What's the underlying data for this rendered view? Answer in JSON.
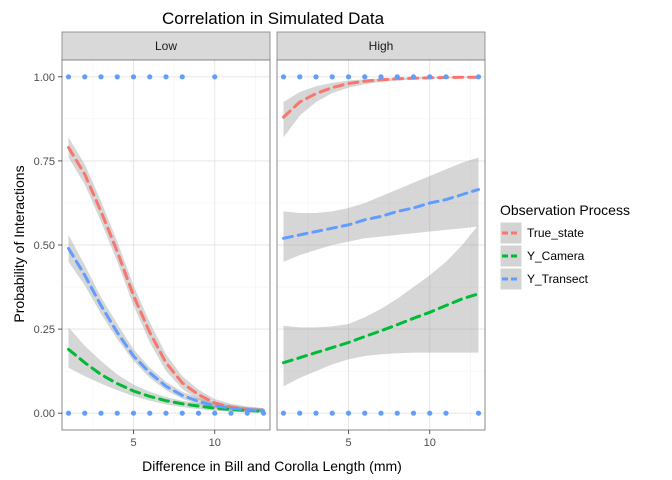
{
  "chart_data": {
    "type": "line",
    "title": "Correlation in Simulated Data",
    "xlabel": "Difference in Bill and Corolla Length (mm)",
    "ylabel": "Probability of Interactions",
    "xlim": [
      0.6,
      13.4
    ],
    "ylim": [
      -0.05,
      1.05
    ],
    "x_ticks": [
      5,
      10
    ],
    "y_ticks": [
      0,
      0.25,
      0.5,
      0.75,
      1
    ],
    "y_tick_labels": [
      "0.00",
      "0.25",
      "0.50",
      "0.75",
      "1.00"
    ],
    "grid": true,
    "legend": {
      "title": "Observation Process",
      "position": "right",
      "entries": [
        "True_state",
        "Y_Camera",
        "Y_Transect"
      ]
    },
    "series_colors": {
      "True_state": "#F8766D",
      "Y_Camera": "#00BA38",
      "Y_Transect": "#619CFF"
    },
    "panels": [
      {
        "label": "Low",
        "series": [
          {
            "name": "True_state",
            "x": [
              1,
              2,
              3,
              4,
              5,
              6,
              7,
              8,
              9,
              10,
              11,
              12,
              13
            ],
            "y": [
              0.79,
              0.71,
              0.6,
              0.48,
              0.35,
              0.24,
              0.15,
              0.09,
              0.055,
              0.03,
              0.018,
              0.011,
              0.007
            ],
            "lower": [
              0.76,
              0.68,
              0.57,
              0.45,
              0.32,
              0.21,
              0.125,
              0.072,
              0.04,
              0.02,
              0.01,
              0.005,
              0.002
            ],
            "upper": [
              0.82,
              0.74,
              0.63,
              0.51,
              0.38,
              0.27,
              0.175,
              0.11,
              0.07,
              0.042,
              0.028,
              0.02,
              0.015
            ]
          },
          {
            "name": "Y_Camera",
            "x": [
              1,
              2,
              3,
              4,
              5,
              6,
              7,
              8,
              9,
              10,
              11,
              12,
              13
            ],
            "y": [
              0.19,
              0.15,
              0.115,
              0.088,
              0.066,
              0.05,
              0.037,
              0.028,
              0.021,
              0.015,
              0.011,
              0.008,
              0.006
            ],
            "lower": [
              0.135,
              0.11,
              0.088,
              0.068,
              0.051,
              0.037,
              0.026,
              0.018,
              0.012,
              0.007,
              0.004,
              0.002,
              0.001
            ],
            "upper": [
              0.255,
              0.2,
              0.155,
              0.115,
              0.085,
              0.064,
              0.048,
              0.037,
              0.03,
              0.024,
              0.02,
              0.017,
              0.015
            ]
          },
          {
            "name": "Y_Transect",
            "x": [
              1,
              2,
              3,
              4,
              5,
              6,
              7,
              8,
              9,
              10,
              11,
              12,
              13
            ],
            "y": [
              0.49,
              0.41,
              0.32,
              0.24,
              0.17,
              0.12,
              0.08,
              0.053,
              0.035,
              0.022,
              0.015,
              0.01,
              0.007
            ],
            "lower": [
              0.45,
              0.38,
              0.295,
              0.22,
              0.155,
              0.105,
              0.068,
              0.043,
              0.026,
              0.015,
              0.008,
              0.004,
              0.002
            ],
            "upper": [
              0.53,
              0.44,
              0.345,
              0.265,
              0.19,
              0.135,
              0.093,
              0.064,
              0.045,
              0.032,
              0.024,
              0.018,
              0.014
            ]
          }
        ],
        "points": [
          {
            "x": 1,
            "y": 1
          },
          {
            "x": 2,
            "y": 1
          },
          {
            "x": 3,
            "y": 1
          },
          {
            "x": 4,
            "y": 1
          },
          {
            "x": 5,
            "y": 1
          },
          {
            "x": 6,
            "y": 1
          },
          {
            "x": 7,
            "y": 1
          },
          {
            "x": 8,
            "y": 1
          },
          {
            "x": 10,
            "y": 1
          },
          {
            "x": 1,
            "y": 0
          },
          {
            "x": 2,
            "y": 0
          },
          {
            "x": 3,
            "y": 0
          },
          {
            "x": 4,
            "y": 0
          },
          {
            "x": 5,
            "y": 0
          },
          {
            "x": 6,
            "y": 0
          },
          {
            "x": 7,
            "y": 0
          },
          {
            "x": 8,
            "y": 0
          },
          {
            "x": 9,
            "y": 0
          },
          {
            "x": 10,
            "y": 0
          },
          {
            "x": 11,
            "y": 0
          },
          {
            "x": 12,
            "y": 0
          },
          {
            "x": 13,
            "y": 0
          }
        ]
      },
      {
        "label": "High",
        "series": [
          {
            "name": "True_state",
            "x": [
              1,
              2,
              3,
              4,
              5,
              6,
              7,
              8,
              9,
              10,
              11,
              12,
              13
            ],
            "y": [
              0.88,
              0.925,
              0.95,
              0.968,
              0.98,
              0.987,
              0.991,
              0.994,
              0.996,
              0.997,
              0.998,
              0.999,
              0.999
            ],
            "lower": [
              0.82,
              0.885,
              0.925,
              0.952,
              0.968,
              0.978,
              0.985,
              0.989,
              0.992,
              0.994,
              0.996,
              0.997,
              0.998
            ],
            "upper": [
              0.925,
              0.955,
              0.972,
              0.982,
              0.989,
              0.993,
              0.995,
              0.997,
              0.998,
              0.999,
              0.999,
              1,
              1
            ]
          },
          {
            "name": "Y_Camera",
            "x": [
              1,
              2,
              3,
              4,
              5,
              6,
              7,
              8,
              9,
              10,
              11,
              12,
              13
            ],
            "y": [
              0.15,
              0.165,
              0.18,
              0.195,
              0.21,
              0.228,
              0.245,
              0.263,
              0.282,
              0.3,
              0.32,
              0.34,
              0.355
            ],
            "lower": [
              0.08,
              0.105,
              0.125,
              0.145,
              0.16,
              0.17,
              0.175,
              0.178,
              0.18,
              0.18,
              0.18,
              0.18,
              0.18
            ],
            "upper": [
              0.26,
              0.255,
              0.255,
              0.258,
              0.265,
              0.285,
              0.31,
              0.34,
              0.375,
              0.41,
              0.45,
              0.5,
              0.56
            ]
          },
          {
            "name": "Y_Transect",
            "x": [
              1,
              2,
              3,
              4,
              5,
              6,
              7,
              8,
              9,
              10,
              11,
              12,
              13
            ],
            "y": [
              0.52,
              0.53,
              0.54,
              0.55,
              0.56,
              0.575,
              0.585,
              0.6,
              0.61,
              0.625,
              0.635,
              0.65,
              0.665
            ],
            "lower": [
              0.45,
              0.47,
              0.485,
              0.5,
              0.51,
              0.52,
              0.525,
              0.53,
              0.535,
              0.54,
              0.545,
              0.55,
              0.555
            ],
            "upper": [
              0.6,
              0.595,
              0.595,
              0.6,
              0.61,
              0.625,
              0.645,
              0.665,
              0.685,
              0.705,
              0.725,
              0.745,
              0.76
            ]
          }
        ],
        "points": [
          {
            "x": 1,
            "y": 1
          },
          {
            "x": 2,
            "y": 1
          },
          {
            "x": 3,
            "y": 1
          },
          {
            "x": 4,
            "y": 1
          },
          {
            "x": 5,
            "y": 1
          },
          {
            "x": 6,
            "y": 1
          },
          {
            "x": 7,
            "y": 1
          },
          {
            "x": 8,
            "y": 1
          },
          {
            "x": 9,
            "y": 1
          },
          {
            "x": 10,
            "y": 1
          },
          {
            "x": 11,
            "y": 1
          },
          {
            "x": 13,
            "y": 1
          },
          {
            "x": 1,
            "y": 0
          },
          {
            "x": 2,
            "y": 0
          },
          {
            "x": 3,
            "y": 0
          },
          {
            "x": 4,
            "y": 0
          },
          {
            "x": 5,
            "y": 0
          },
          {
            "x": 6,
            "y": 0
          },
          {
            "x": 7,
            "y": 0
          },
          {
            "x": 8,
            "y": 0
          },
          {
            "x": 9,
            "y": 0
          },
          {
            "x": 10,
            "y": 0
          },
          {
            "x": 11,
            "y": 0
          },
          {
            "x": 13,
            "y": 0
          }
        ]
      }
    ]
  }
}
